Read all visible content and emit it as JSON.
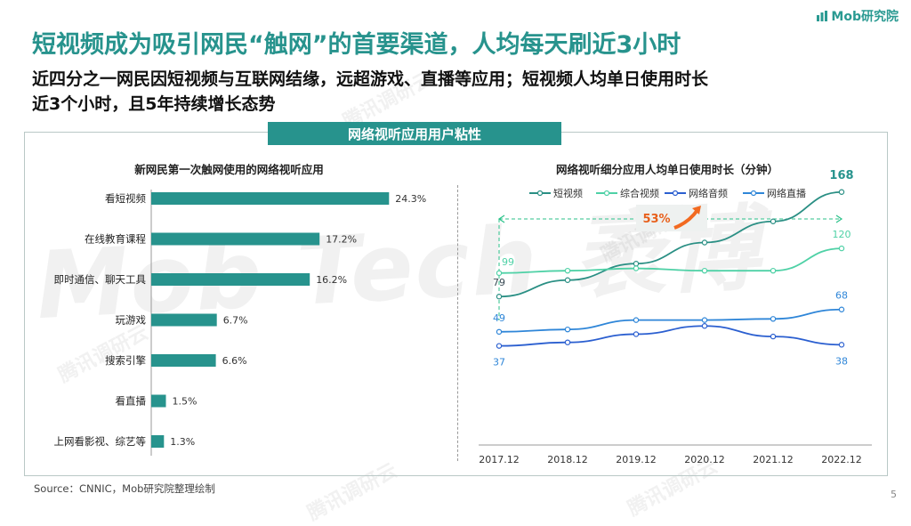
{
  "logo": {
    "text": "Mob研究院"
  },
  "title": "短视频成为吸引网民“触网”的首要渠道，人均每天刷近3小时",
  "subtitle": {
    "line1": "近四分之一网民因短视频与互联网结缘，远超游戏、直播等应用；短视频人均单日使用时长",
    "line2": "近3个小时，且5年持续增长态势"
  },
  "banner": "网络视听应用用户粘性",
  "watermarks": {
    "brand": "Mob Tech 袤博",
    "tencent": "腾讯调研云"
  },
  "source": "Source：CNNIC，Mob研究院整理绘制",
  "page_number": "5",
  "colors": {
    "accent": "#27938d",
    "bar": "#27938d"
  },
  "chart_data": [
    {
      "type": "bar",
      "orientation": "horizontal",
      "title": "新网民第一次触网使用的网络视听应用",
      "categories": [
        "看短视频",
        "在线教育课程",
        "即时通信、聊天工具",
        "玩游戏",
        "搜索引擎",
        "看直播",
        "上网看影视、综艺等"
      ],
      "values": [
        24.3,
        17.2,
        16.2,
        6.7,
        6.6,
        1.5,
        1.3
      ],
      "value_labels": [
        "24.3%",
        "17.2%",
        "16.2%",
        "6.7%",
        "6.6%",
        "1.5%",
        "1.3%"
      ],
      "unit": "%",
      "xlim": [
        0,
        30
      ]
    },
    {
      "type": "line",
      "title": "网络视听细分应用人均单日使用时长（分钟）",
      "x": [
        "2017.12",
        "2018.12",
        "2019.12",
        "2020.12",
        "2021.12",
        "2022.12"
      ],
      "ylim": [
        25,
        175
      ],
      "series": [
        {
          "name": "短视频",
          "color": "#2a8f84",
          "values": [
            79,
            93,
            107,
            125,
            143,
            168
          ],
          "labels": {
            "0": "79",
            "5": "168"
          }
        },
        {
          "name": "综合视频",
          "color": "#4fd1a6",
          "values": [
            99,
            101,
            103,
            101,
            101,
            120
          ],
          "labels": {
            "0": "99",
            "5": "120"
          }
        },
        {
          "name": "网络音频",
          "color": "#2b5fd0",
          "values": [
            37,
            40,
            47,
            54,
            45,
            38
          ],
          "labels": {
            "0": "37",
            "5": "38"
          }
        },
        {
          "name": "网络直播",
          "color": "#2f86d8",
          "values": [
            49,
            51,
            59,
            59,
            60,
            68
          ],
          "labels": {
            "0": "49",
            "5": "68"
          }
        }
      ],
      "annotation": {
        "text": "53%",
        "from": "2017.12",
        "to": "2022.12"
      }
    }
  ]
}
